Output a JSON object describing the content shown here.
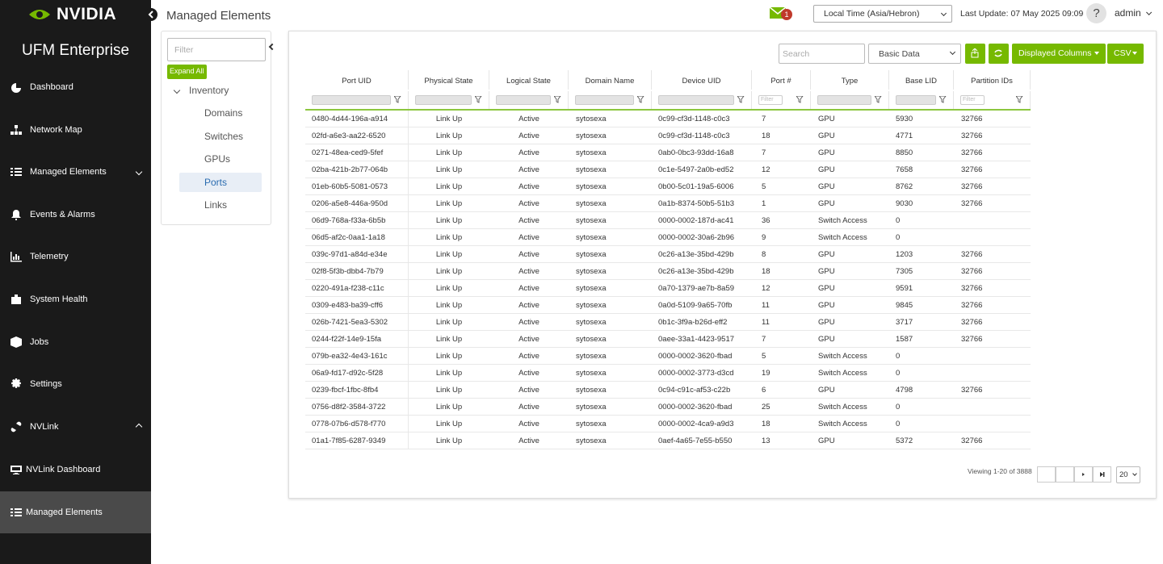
{
  "header": {
    "title": "Managed Elements",
    "notifications": "1",
    "timezone": "Local Time (Asia/Hebron)",
    "last_update": "Last Update: 07 May 2025 09:09",
    "help": "?",
    "user": "admin"
  },
  "sidebar": {
    "brand": "NVIDIA",
    "product": "UFM Enterprise",
    "items": [
      "Dashboard",
      "Network Map",
      "Managed Elements",
      "Events & Alarms",
      "Telemetry",
      "System Health",
      "Jobs",
      "Settings",
      "NVLink"
    ],
    "sub_items": [
      "NVLink Dashboard",
      "Managed Elements"
    ]
  },
  "tree": {
    "filter_placeholder": "Filter",
    "expand_all": "Expand All",
    "root": "Inventory",
    "children": [
      "Domains",
      "Switches",
      "GPUs",
      "Ports",
      "Links"
    ],
    "selected": 3
  },
  "toolbar": {
    "search_placeholder": "Search",
    "view": "Basic Data",
    "columns_button": "Displayed Columns",
    "export_button": "CSV"
  },
  "table": {
    "columns": [
      "Port UID",
      "Physical State",
      "Logical State",
      "Domain Name",
      "Device UID",
      "Port #",
      "Type",
      "Base LID",
      "Partition IDs"
    ],
    "filter_placeholders": {
      "5": "Filter",
      "8": "Filter"
    },
    "rows": [
      [
        "0480-4d44-196a-a914",
        "Link Up",
        "Active",
        "sytosexa",
        "0c99-cf3d-1148-c0c3",
        "7",
        "GPU",
        "5930",
        "32766"
      ],
      [
        "02fd-a6e3-aa22-6520",
        "Link Up",
        "Active",
        "sytosexa",
        "0c99-cf3d-1148-c0c3",
        "18",
        "GPU",
        "4771",
        "32766"
      ],
      [
        "0271-48ea-ced9-5fef",
        "Link Up",
        "Active",
        "sytosexa",
        "0ab0-0bc3-93dd-16a8",
        "7",
        "GPU",
        "8850",
        "32766"
      ],
      [
        "02ba-421b-2b77-064b",
        "Link Up",
        "Active",
        "sytosexa",
        "0c1e-5497-2a0b-ed52",
        "12",
        "GPU",
        "7658",
        "32766"
      ],
      [
        "01eb-60b5-5081-0573",
        "Link Up",
        "Active",
        "sytosexa",
        "0b00-5c01-19a5-6006",
        "5",
        "GPU",
        "8762",
        "32766"
      ],
      [
        "0206-a5e8-446a-950d",
        "Link Up",
        "Active",
        "sytosexa",
        "0a1b-8374-50b5-51b3",
        "1",
        "GPU",
        "9030",
        "32766"
      ],
      [
        "06d9-768a-f33a-6b5b",
        "Link Up",
        "Active",
        "sytosexa",
        "0000-0002-187d-ac41",
        "36",
        "Switch Access",
        "0",
        null
      ],
      [
        "06d5-af2c-0aa1-1a18",
        "Link Up",
        "Active",
        "sytosexa",
        "0000-0002-30a6-2b96",
        "9",
        "Switch Access",
        "0",
        null
      ],
      [
        "039c-97d1-a84d-e34e",
        "Link Up",
        "Active",
        "sytosexa",
        "0c26-a13e-35bd-429b",
        "8",
        "GPU",
        "1203",
        "32766"
      ],
      [
        "02f8-5f3b-dbb4-7b79",
        "Link Up",
        "Active",
        "sytosexa",
        "0c26-a13e-35bd-429b",
        "18",
        "GPU",
        "7305",
        "32766"
      ],
      [
        "0220-491a-f238-c11c",
        "Link Up",
        "Active",
        "sytosexa",
        "0a70-1379-ae7b-8a59",
        "12",
        "GPU",
        "9591",
        "32766"
      ],
      [
        "0309-e483-ba39-cff6",
        "Link Up",
        "Active",
        "sytosexa",
        "0a0d-5109-9a65-70fb",
        "11",
        "GPU",
        "9845",
        "32766"
      ],
      [
        "026b-7421-5ea3-5302",
        "Link Up",
        "Active",
        "sytosexa",
        "0b1c-3f9a-b26d-eff2",
        "11",
        "GPU",
        "3717",
        "32766"
      ],
      [
        "0244-f22f-14e9-15fa",
        "Link Up",
        "Active",
        "sytosexa",
        "0aee-33a1-4423-9517",
        "7",
        "GPU",
        "1587",
        "32766"
      ],
      [
        "079b-ea32-4e43-161c",
        "Link Up",
        "Active",
        "sytosexa",
        "0000-0002-3620-fbad",
        "5",
        "Switch Access",
        "0",
        null
      ],
      [
        "06a9-fd17-d92c-5f28",
        "Link Up",
        "Active",
        "sytosexa",
        "0000-0002-3773-d3cd",
        "19",
        "Switch Access",
        "0",
        null
      ],
      [
        "0239-fbcf-1fbc-8fb4",
        "Link Up",
        "Active",
        "sytosexa",
        "0c94-c91c-af53-c22b",
        "6",
        "GPU",
        "4798",
        "32766"
      ],
      [
        "0756-d8f2-3584-3722",
        "Link Up",
        "Active",
        "sytosexa",
        "0000-0002-3620-fbad",
        "25",
        "Switch Access",
        "0",
        null
      ],
      [
        "0778-07b6-d578-f770",
        "Link Up",
        "Active",
        "sytosexa",
        "0000-0002-4ca9-a9d3",
        "18",
        "Switch Access",
        "0",
        null
      ],
      [
        "01a1-7f85-6287-9349",
        "Link Up",
        "Active",
        "sytosexa",
        "0aef-4a65-7e55-b550",
        "13",
        "GPU",
        "5372",
        "32766"
      ]
    ]
  },
  "pagination": {
    "summary": "Viewing 1-20 of 3888",
    "page_size": "20"
  }
}
